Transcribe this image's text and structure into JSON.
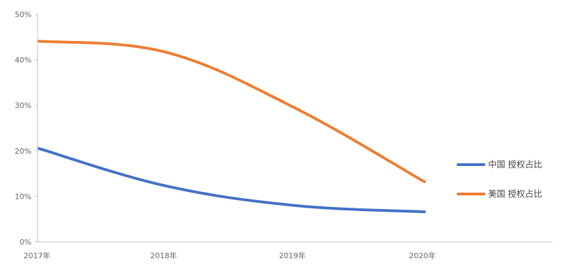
{
  "chart_data": {
    "type": "line",
    "title": "",
    "xlabel": "",
    "ylabel": "",
    "categories": [
      "2017年",
      "2018年",
      "2019年",
      "2020年"
    ],
    "y_ticks": [
      "0%",
      "10%",
      "20%",
      "30%",
      "40%",
      "50%"
    ],
    "ylim": [
      0,
      50
    ],
    "grid": false,
    "legend_position": "right",
    "series": [
      {
        "name": "中国 授权占比",
        "color": "#4472C4",
        "values": [
          20.5,
          12.3,
          8.0,
          6.6
        ]
      },
      {
        "name": "美国 授权占比",
        "color": "#ED7D31",
        "values": [
          44.1,
          41.7,
          29.5,
          13.2
        ]
      }
    ]
  }
}
